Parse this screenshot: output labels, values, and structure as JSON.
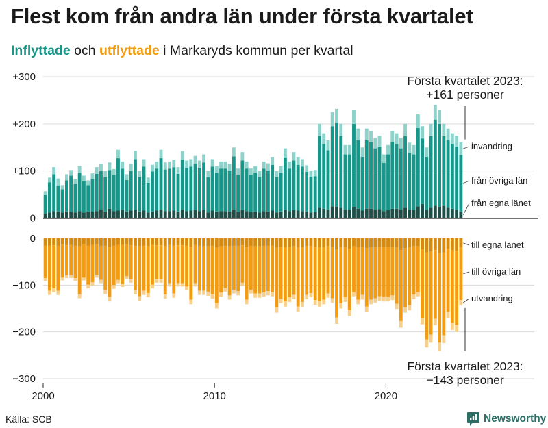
{
  "title": "Flest kom från andra län under första kvartalet",
  "subtitle": {
    "in_word": "Inflyttade",
    "mid_word": " och ",
    "out_word": "utflyttade",
    "rest": " i Markaryds kommun per kvartal"
  },
  "source": "Källa: SCB",
  "brand": "Newsworthy",
  "colors": {
    "in_own": "#1d4f48",
    "in_other": "#17978a",
    "in_abroad": "#8dd3cb",
    "out_own": "#d68a0e",
    "out_other": "#f39c12",
    "out_abroad": "#f8d08d",
    "brand": "#2c6e66"
  },
  "chart_data": {
    "type": "bar",
    "stacked": true,
    "period": "quarterly",
    "x_start_year": 2000,
    "x_ticks": [
      "2000",
      "2010",
      "2020"
    ],
    "y_top_range": [
      0,
      300
    ],
    "y_top_ticks": [
      "0",
      "+100",
      "+200",
      "+300"
    ],
    "y_bottom_range": [
      0,
      -300
    ],
    "y_bottom_ticks": [
      "0",
      "−100",
      "−200",
      "−300"
    ],
    "segment_labels_in": [
      "invandring",
      "från övriga län",
      "från egna länet"
    ],
    "segment_labels_out": [
      "till egna länet",
      "till övriga län",
      "utvandring"
    ],
    "annotation_top": [
      "Första kvartalet 2023:",
      "+161 personer"
    ],
    "annotation_bottom": [
      "Första kvartalet 2023:",
      "−143 personer"
    ],
    "inflyttade": {
      "total": [
        57,
        86,
        108,
        84,
        70,
        93,
        102,
        83,
        110,
        90,
        80,
        95,
        108,
        115,
        100,
        118,
        104,
        145,
        120,
        93,
        115,
        143,
        100,
        125,
        86,
        113,
        120,
        145,
        118,
        120,
        124,
        108,
        142,
        122,
        125,
        132,
        122,
        135,
        100,
        125,
        110,
        120,
        120,
        115,
        150,
        105,
        140,
        120,
        105,
        110,
        100,
        120,
        116,
        130,
        100,
        110,
        148,
        120,
        140,
        130,
        125,
        112,
        101,
        102,
        200,
        180,
        165,
        225,
        232,
        200,
        155,
        155,
        230,
        190,
        150,
        190,
        185,
        170,
        175,
        135,
        155,
        185,
        180,
        170,
        200,
        160,
        155,
        220,
        195,
        150,
        200,
        240,
        230,
        200,
        190,
        180,
        175,
        161
      ],
      "egna_lanet": [
        10,
        12,
        15,
        14,
        12,
        14,
        13,
        12,
        15,
        12,
        14,
        13,
        15,
        18,
        14,
        20,
        15,
        16,
        18,
        14,
        16,
        17,
        14,
        16,
        12,
        14,
        16,
        18,
        15,
        15,
        16,
        14,
        18,
        15,
        16,
        17,
        15,
        17,
        12,
        16,
        14,
        15,
        15,
        14,
        18,
        13,
        17,
        15,
        13,
        14,
        12,
        15,
        14,
        16,
        12,
        14,
        18,
        15,
        17,
        16,
        15,
        14,
        12,
        13,
        22,
        20,
        18,
        25,
        24,
        22,
        18,
        18,
        24,
        20,
        16,
        20,
        20,
        18,
        19,
        15,
        17,
        20,
        20,
        18,
        22,
        18,
        17,
        25,
        30,
        18,
        22,
        26,
        24,
        26,
        22,
        20,
        18,
        14
      ],
      "utvandring": [
        8,
        10,
        15,
        15,
        9,
        13,
        12,
        11,
        14,
        11,
        10,
        12,
        14,
        15,
        13,
        16,
        13,
        18,
        15,
        12,
        15,
        18,
        13,
        16,
        11,
        14,
        15,
        18,
        15,
        15,
        16,
        14,
        18,
        16,
        16,
        17,
        15,
        17,
        13,
        16,
        14,
        15,
        15,
        14,
        19,
        14,
        18,
        15,
        14,
        14,
        13,
        15,
        15,
        17,
        13,
        14,
        19,
        15,
        18,
        17,
        16,
        14,
        13,
        13,
        26,
        23,
        21,
        30,
        30,
        26,
        20,
        20,
        30,
        25,
        20,
        25,
        24,
        22,
        23,
        18,
        20,
        24,
        23,
        22,
        26,
        21,
        20,
        29,
        26,
        20,
        26,
        31,
        30,
        26,
        25,
        23,
        23,
        27
      ]
    },
    "utflyttade": {
      "total": [
        91,
        121,
        115,
        121,
        90,
        85,
        85,
        91,
        128,
        90,
        107,
        101,
        84,
        96,
        119,
        135,
        108,
        96,
        104,
        87,
        95,
        120,
        134,
        121,
        126,
        107,
        95,
        95,
        129,
        103,
        127,
        103,
        103,
        111,
        141,
        103,
        121,
        121,
        123,
        129,
        150,
        125,
        114,
        131,
        118,
        122,
        102,
        141,
        118,
        127,
        127,
        125,
        122,
        124,
        159,
        139,
        146,
        136,
        130,
        157,
        147,
        130,
        126,
        142,
        146,
        141,
        127,
        138,
        183,
        150,
        136,
        166,
        124,
        141,
        131,
        158,
        141,
        138,
        134,
        135,
        135,
        132,
        151,
        191,
        159,
        154,
        130,
        124,
        184,
        233,
        223,
        186,
        241,
        224,
        170,
        196,
        200,
        143
      ],
      "egna_lanet": [
        16,
        16,
        15,
        16,
        13,
        15,
        14,
        16,
        17,
        13,
        16,
        14,
        13,
        16,
        16,
        18,
        16,
        14,
        14,
        13,
        15,
        16,
        17,
        16,
        17,
        14,
        15,
        15,
        17,
        14,
        16,
        15,
        15,
        16,
        18,
        14,
        16,
        17,
        17,
        16,
        20,
        17,
        16,
        17,
        16,
        16,
        15,
        18,
        16,
        17,
        17,
        16,
        16,
        16,
        20,
        18,
        19,
        18,
        17,
        20,
        19,
        17,
        17,
        18,
        20,
        19,
        17,
        18,
        24,
        20,
        18,
        22,
        17,
        19,
        18,
        21,
        19,
        18,
        18,
        18,
        18,
        18,
        20,
        25,
        21,
        20,
        17,
        17,
        24,
        30,
        29,
        25,
        32,
        30,
        22,
        26,
        27,
        20
      ],
      "utvandring": [
        6,
        9,
        8,
        9,
        6,
        6,
        6,
        6,
        9,
        6,
        8,
        7,
        6,
        7,
        8,
        10,
        8,
        7,
        7,
        6,
        7,
        9,
        10,
        9,
        9,
        8,
        7,
        7,
        9,
        7,
        9,
        7,
        7,
        8,
        10,
        7,
        9,
        9,
        9,
        9,
        11,
        9,
        8,
        9,
        8,
        9,
        7,
        10,
        8,
        9,
        9,
        9,
        9,
        9,
        12,
        10,
        11,
        10,
        9,
        11,
        11,
        9,
        9,
        10,
        11,
        10,
        9,
        10,
        14,
        11,
        10,
        12,
        9,
        10,
        10,
        12,
        10,
        10,
        10,
        10,
        10,
        10,
        11,
        14,
        12,
        11,
        10,
        9,
        14,
        17,
        17,
        14,
        18,
        17,
        13,
        15,
        15,
        11
      ]
    }
  }
}
